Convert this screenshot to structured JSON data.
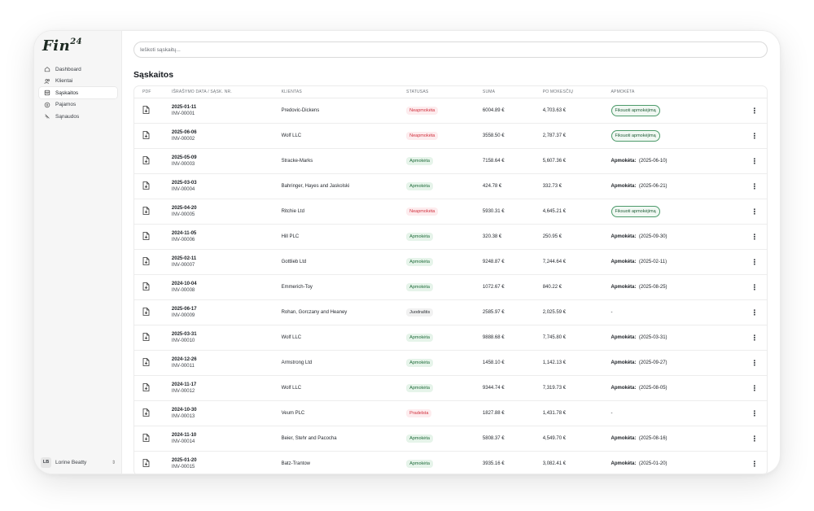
{
  "app": {
    "logo_text": "Fin",
    "logo_sup": "24"
  },
  "sidebar": {
    "items": [
      {
        "label": "Dashboard",
        "icon": "home-icon"
      },
      {
        "label": "Klientai",
        "icon": "users-icon"
      },
      {
        "label": "Sąskaitos",
        "icon": "invoice-icon",
        "active": true
      },
      {
        "label": "Pajamos",
        "icon": "income-icon"
      },
      {
        "label": "Sąnaudos",
        "icon": "expenses-icon"
      }
    ],
    "user": {
      "initials": "LB",
      "name": "Lorine Beatty"
    }
  },
  "search": {
    "placeholder": "Ieškoti sąskaitų..."
  },
  "page": {
    "title": "Sąskaitos"
  },
  "table": {
    "headers": {
      "pdf": "PDF",
      "date": "IŠRAŠYMO DATA / SĄSK. NR.",
      "client": "KLIENTAS",
      "status": "STATUSAS",
      "sum": "SUMA",
      "tax": "PO MOKESČIŲ",
      "paid": "APMOKĖTA"
    },
    "rows": [
      {
        "date": "2025-01-11",
        "number": "INV-00001",
        "client": "Predovic-Dickens",
        "status": "Neapmokėta",
        "status_type": "red",
        "sum": "6004.89 €",
        "tax": "4,703.63 €",
        "paid_type": "button",
        "paid": "Fiksuoti apmokėjimą"
      },
      {
        "date": "2025-06-06",
        "number": "INV-00002",
        "client": "Wolf LLC",
        "status": "Neapmokėta",
        "status_type": "red",
        "sum": "3558.50 €",
        "tax": "2,787.37 €",
        "paid_type": "button",
        "paid": "Fiksuoti apmokėjimą"
      },
      {
        "date": "2025-05-09",
        "number": "INV-00003",
        "client": "Stracke-Marks",
        "status": "Apmokėta",
        "status_type": "green",
        "sum": "7158.64 €",
        "tax": "5,607.36 €",
        "paid_type": "text",
        "paid_label": "Apmokėta:",
        "paid": "(2025-06-10)"
      },
      {
        "date": "2025-03-03",
        "number": "INV-00004",
        "client": "Bahringer, Hayes and Jaskolski",
        "status": "Apmokėta",
        "status_type": "green",
        "sum": "424.78 €",
        "tax": "332.73 €",
        "paid_type": "text",
        "paid_label": "Apmokėta:",
        "paid": "(2025-06-21)"
      },
      {
        "date": "2025-04-20",
        "number": "INV-00005",
        "client": "Ritchie Ltd",
        "status": "Neapmokėta",
        "status_type": "red",
        "sum": "5930.31 €",
        "tax": "4,645.21 €",
        "paid_type": "button",
        "paid": "Fiksuoti apmokėjimą"
      },
      {
        "date": "2024-11-05",
        "number": "INV-00006",
        "client": "Hill PLC",
        "status": "Apmokėta",
        "status_type": "green",
        "sum": "320.38 €",
        "tax": "250.95 €",
        "paid_type": "text",
        "paid_label": "Apmokėta:",
        "paid": "(2025-09-30)"
      },
      {
        "date": "2025-02-11",
        "number": "INV-00007",
        "client": "Gottlieb Ltd",
        "status": "Apmokėta",
        "status_type": "green",
        "sum": "9248.87 €",
        "tax": "7,244.64 €",
        "paid_type": "text",
        "paid_label": "Apmokėta:",
        "paid": "(2025-02-11)"
      },
      {
        "date": "2024-10-04",
        "number": "INV-00008",
        "client": "Emmerich-Toy",
        "status": "Apmokėta",
        "status_type": "green",
        "sum": "1072.67 €",
        "tax": "840.22 €",
        "paid_type": "text",
        "paid_label": "Apmokėta:",
        "paid": "(2025-08-25)"
      },
      {
        "date": "2025-06-17",
        "number": "INV-00009",
        "client": "Rohan, Gorczany and Heaney",
        "status": "Juodraštis",
        "status_type": "gray",
        "sum": "2585.97 €",
        "tax": "2,025.59 €",
        "paid_type": "none",
        "paid": "-"
      },
      {
        "date": "2025-03-31",
        "number": "INV-00010",
        "client": "Wolf LLC",
        "status": "Apmokėta",
        "status_type": "green",
        "sum": "9888.68 €",
        "tax": "7,745.80 €",
        "paid_type": "text",
        "paid_label": "Apmokėta:",
        "paid": "(2025-03-31)"
      },
      {
        "date": "2024-12-26",
        "number": "INV-00011",
        "client": "Armstrong Ltd",
        "status": "Apmokėta",
        "status_type": "green",
        "sum": "1458.10 €",
        "tax": "1,142.13 €",
        "paid_type": "text",
        "paid_label": "Apmokėta:",
        "paid": "(2025-09-27)"
      },
      {
        "date": "2024-11-17",
        "number": "INV-00012",
        "client": "Wolf LLC",
        "status": "Apmokėta",
        "status_type": "green",
        "sum": "9344.74 €",
        "tax": "7,319.73 €",
        "paid_type": "text",
        "paid_label": "Apmokėta:",
        "paid": "(2025-08-05)"
      },
      {
        "date": "2024-10-30",
        "number": "INV-00013",
        "client": "Veum PLC",
        "status": "Pradelsta",
        "status_type": "pink",
        "sum": "1827.88 €",
        "tax": "1,431.78 €",
        "paid_type": "none",
        "paid": "-"
      },
      {
        "date": "2024-11-10",
        "number": "INV-00014",
        "client": "Beier, Stehr and Pacocha",
        "status": "Apmokėta",
        "status_type": "green",
        "sum": "5808.37 €",
        "tax": "4,549.70 €",
        "paid_type": "text",
        "paid_label": "Apmokėta:",
        "paid": "(2025-08-16)"
      },
      {
        "date": "2025-01-20",
        "number": "INV-00015",
        "client": "Batz-Trantow",
        "status": "Apmokėta",
        "status_type": "green",
        "sum": "3935.16 €",
        "tax": "3,082.41 €",
        "paid_type": "text",
        "paid_label": "Apmokėta:",
        "paid": "(2025-01-20)"
      }
    ]
  }
}
